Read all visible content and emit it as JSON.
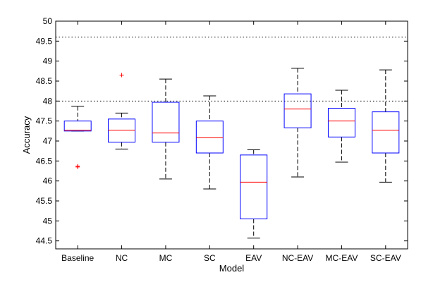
{
  "chart_data": {
    "type": "boxplot",
    "title": "",
    "xlabel": "Model",
    "ylabel": "Accuracy",
    "ylim": [
      44.3,
      50
    ],
    "yticks": [
      44.5,
      45,
      45.5,
      46,
      46.5,
      47,
      47.5,
      48,
      48.5,
      49,
      49.5,
      50
    ],
    "ytick_labels": [
      "44.5",
      "45",
      "45.5",
      "46",
      "46.5",
      "47",
      "47.5",
      "48",
      "48.5",
      "49",
      "49.5",
      "50"
    ],
    "reference_lines": [
      48.0,
      49.6
    ],
    "categories": [
      "Baseline",
      "NC",
      "MC",
      "SC",
      "EAV",
      "NC-EAV",
      "MC-EAV",
      "SC-EAV"
    ],
    "boxes": [
      {
        "name": "Baseline",
        "whisker_low": 47.25,
        "q1": 47.25,
        "median": 47.27,
        "q3": 47.5,
        "whisker_high": 47.87,
        "outliers": [
          46.35,
          46.37
        ]
      },
      {
        "name": "NC",
        "whisker_low": 46.8,
        "q1": 46.97,
        "median": 47.27,
        "q3": 47.55,
        "whisker_high": 47.7,
        "outliers": [
          48.65
        ]
      },
      {
        "name": "MC",
        "whisker_low": 46.05,
        "q1": 46.97,
        "median": 47.2,
        "q3": 47.97,
        "whisker_high": 48.55,
        "outliers": []
      },
      {
        "name": "SC",
        "whisker_low": 45.8,
        "q1": 46.7,
        "median": 47.08,
        "q3": 47.5,
        "whisker_high": 48.13,
        "outliers": []
      },
      {
        "name": "EAV",
        "whisker_low": 44.57,
        "q1": 45.05,
        "median": 45.97,
        "q3": 46.65,
        "whisker_high": 46.78,
        "outliers": []
      },
      {
        "name": "NC-EAV",
        "whisker_low": 46.1,
        "q1": 47.33,
        "median": 47.8,
        "q3": 48.18,
        "whisker_high": 48.82,
        "outliers": []
      },
      {
        "name": "MC-EAV",
        "whisker_low": 46.47,
        "q1": 47.1,
        "median": 47.5,
        "q3": 47.82,
        "whisker_high": 48.27,
        "outliers": []
      },
      {
        "name": "SC-EAV",
        "whisker_low": 45.97,
        "q1": 46.7,
        "median": 47.27,
        "q3": 47.73,
        "whisker_high": 48.78,
        "outliers": []
      }
    ],
    "colors": {
      "box": "#0000ff",
      "median": "#ff0000",
      "whisker": "#000000",
      "outlier": "#ff0000",
      "reference": "#000000"
    }
  }
}
